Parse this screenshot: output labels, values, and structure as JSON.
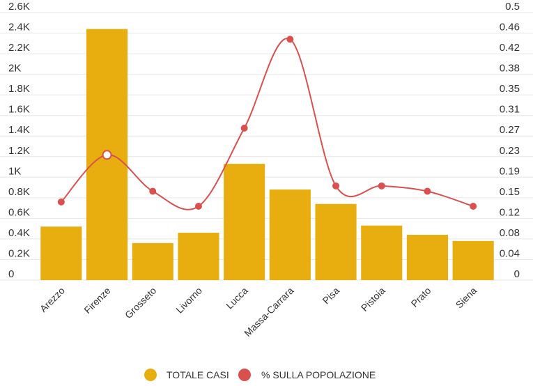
{
  "chart_data": {
    "type": "bar",
    "categories": [
      "Arezzo",
      "Firenze",
      "Grosseto",
      "Livorno",
      "Lucca",
      "Massa-Carrara",
      "Pisa",
      "Pistoia",
      "Prato",
      "Siena"
    ],
    "series": [
      {
        "name": "TOTALE CASI",
        "type": "bar",
        "axis": "left",
        "color": "#E8AE10",
        "values": [
          520,
          2440,
          360,
          460,
          1130,
          880,
          740,
          530,
          440,
          380
        ]
      },
      {
        "name": "% SULLA POPOLAZIONE",
        "type": "line",
        "axis": "right",
        "color": "#D9504F",
        "values": [
          0.146,
          0.234,
          0.166,
          0.138,
          0.284,
          0.45,
          0.176,
          0.176,
          0.166,
          0.138
        ]
      }
    ],
    "y_left": {
      "ylim": [
        0,
        2600
      ],
      "ticks": [
        "0",
        "0.2K",
        "0.4K",
        "0.6K",
        "0.8K",
        "1K",
        "1.2K",
        "1.4K",
        "1.6K",
        "1.8K",
        "2K",
        "2.2K",
        "2.4K",
        "2.6K"
      ]
    },
    "y_right": {
      "ylim": [
        0,
        0.5
      ],
      "ticks": [
        "0",
        "0.04",
        "0.08",
        "0.12",
        "0.15",
        "0.19",
        "0.23",
        "0.27",
        "0.31",
        "0.35",
        "0.38",
        "0.42",
        "0.46",
        "0.5"
      ]
    },
    "highlighted_index": 1,
    "grid": true,
    "legend_position": "bottom-center"
  }
}
